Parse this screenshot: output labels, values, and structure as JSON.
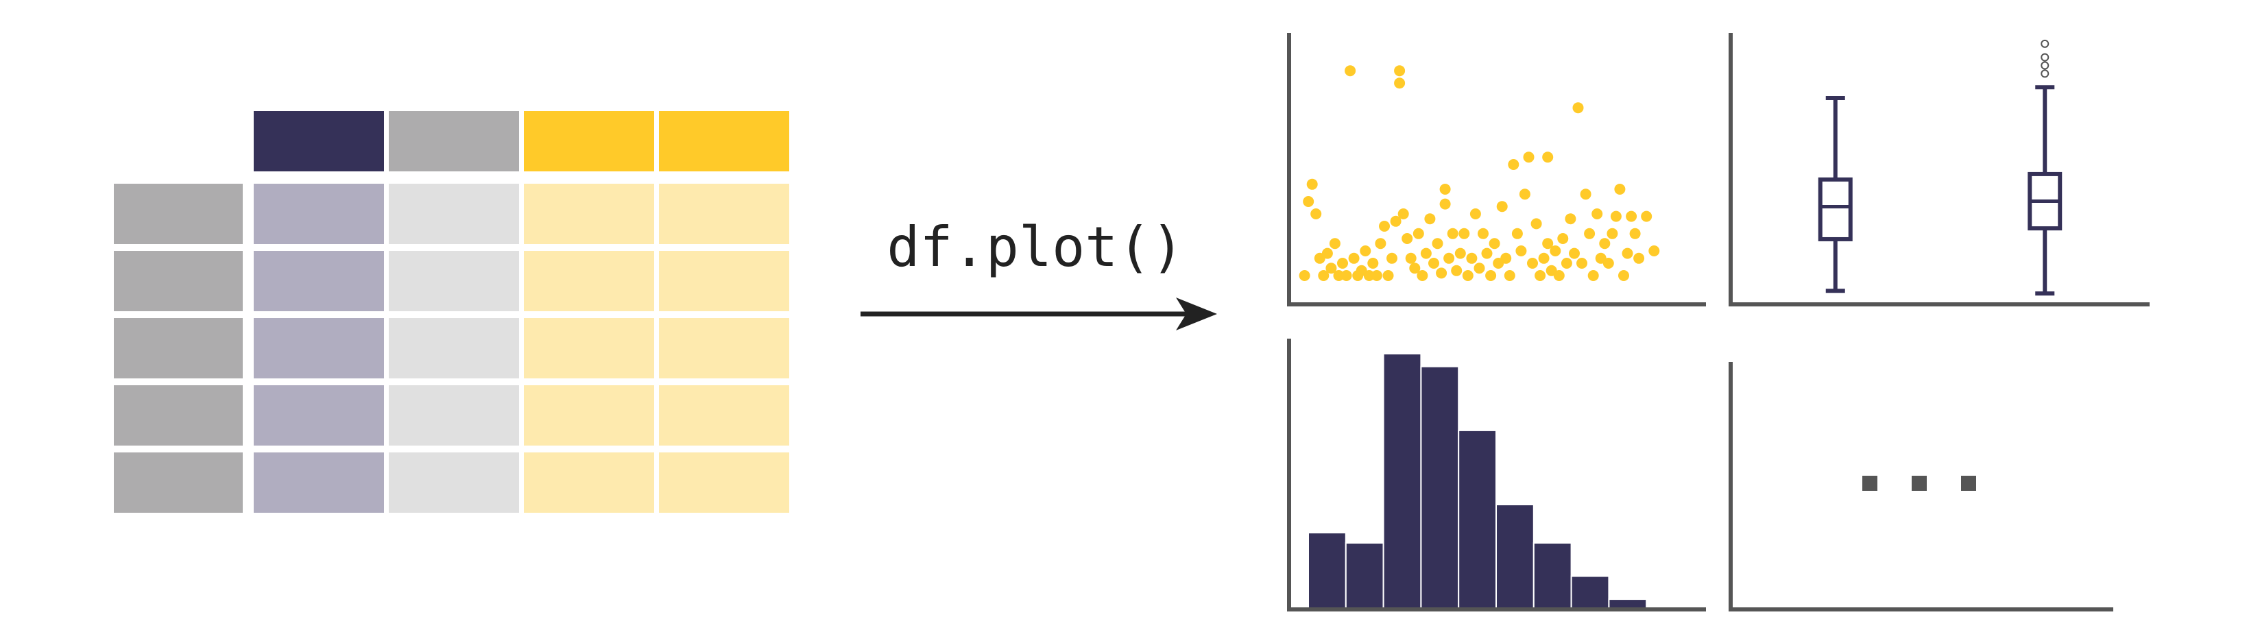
{
  "code_label": "df.plot()",
  "colors": {
    "navy": "#353158",
    "navy_light": "#b0adc0",
    "gray": "#adacad",
    "gray_light": "#e0e0e0",
    "yellow": "#ffca29",
    "yellow_light": "#feeaae",
    "axis": "#555555",
    "arrow": "#222222",
    "outlier": "#555555"
  },
  "dataframe": {
    "column_colors": [
      "navy",
      "gray",
      "yellow",
      "yellow"
    ],
    "row_count": 5
  },
  "chart_data": [
    {
      "type": "scatter",
      "points": [
        [
          0.03,
          0.05
        ],
        [
          0.04,
          0.35
        ],
        [
          0.05,
          0.42
        ],
        [
          0.06,
          0.3
        ],
        [
          0.07,
          0.12
        ],
        [
          0.08,
          0.05
        ],
        [
          0.09,
          0.14
        ],
        [
          0.1,
          0.08
        ],
        [
          0.11,
          0.18
        ],
        [
          0.12,
          0.05
        ],
        [
          0.13,
          0.1
        ],
        [
          0.14,
          0.05
        ],
        [
          0.15,
          0.88
        ],
        [
          0.16,
          0.12
        ],
        [
          0.17,
          0.05
        ],
        [
          0.18,
          0.07
        ],
        [
          0.19,
          0.15
        ],
        [
          0.2,
          0.05
        ],
        [
          0.21,
          0.1
        ],
        [
          0.22,
          0.05
        ],
        [
          0.23,
          0.18
        ],
        [
          0.24,
          0.25
        ],
        [
          0.25,
          0.05
        ],
        [
          0.26,
          0.12
        ],
        [
          0.27,
          0.27
        ],
        [
          0.28,
          0.88
        ],
        [
          0.28,
          0.83
        ],
        [
          0.29,
          0.3
        ],
        [
          0.3,
          0.2
        ],
        [
          0.31,
          0.12
        ],
        [
          0.32,
          0.08
        ],
        [
          0.33,
          0.22
        ],
        [
          0.34,
          0.05
        ],
        [
          0.35,
          0.14
        ],
        [
          0.36,
          0.28
        ],
        [
          0.37,
          0.1
        ],
        [
          0.38,
          0.18
        ],
        [
          0.39,
          0.06
        ],
        [
          0.4,
          0.4
        ],
        [
          0.4,
          0.34
        ],
        [
          0.41,
          0.12
        ],
        [
          0.42,
          0.22
        ],
        [
          0.43,
          0.07
        ],
        [
          0.44,
          0.14
        ],
        [
          0.45,
          0.22
        ],
        [
          0.46,
          0.05
        ],
        [
          0.47,
          0.12
        ],
        [
          0.48,
          0.3
        ],
        [
          0.49,
          0.08
        ],
        [
          0.5,
          0.22
        ],
        [
          0.51,
          0.14
        ],
        [
          0.52,
          0.05
        ],
        [
          0.53,
          0.18
        ],
        [
          0.54,
          0.1
        ],
        [
          0.55,
          0.33
        ],
        [
          0.56,
          0.12
        ],
        [
          0.57,
          0.05
        ],
        [
          0.58,
          0.5
        ],
        [
          0.59,
          0.22
        ],
        [
          0.6,
          0.15
        ],
        [
          0.61,
          0.38
        ],
        [
          0.62,
          0.53
        ],
        [
          0.63,
          0.1
        ],
        [
          0.64,
          0.26
        ],
        [
          0.65,
          0.05
        ],
        [
          0.66,
          0.12
        ],
        [
          0.67,
          0.18
        ],
        [
          0.67,
          0.53
        ],
        [
          0.68,
          0.07
        ],
        [
          0.69,
          0.15
        ],
        [
          0.7,
          0.05
        ],
        [
          0.71,
          0.2
        ],
        [
          0.72,
          0.1
        ],
        [
          0.73,
          0.28
        ],
        [
          0.74,
          0.14
        ],
        [
          0.75,
          0.73
        ],
        [
          0.76,
          0.1
        ],
        [
          0.77,
          0.38
        ],
        [
          0.78,
          0.22
        ],
        [
          0.79,
          0.05
        ],
        [
          0.8,
          0.3
        ],
        [
          0.81,
          0.12
        ],
        [
          0.82,
          0.18
        ],
        [
          0.83,
          0.1
        ],
        [
          0.84,
          0.22
        ],
        [
          0.85,
          0.29
        ],
        [
          0.86,
          0.4
        ],
        [
          0.87,
          0.05
        ],
        [
          0.88,
          0.14
        ],
        [
          0.89,
          0.29
        ],
        [
          0.9,
          0.22
        ],
        [
          0.91,
          0.12
        ],
        [
          0.93,
          0.29
        ],
        [
          0.95,
          0.15
        ]
      ],
      "xlim": [
        0,
        1
      ],
      "ylim": [
        0,
        1
      ],
      "color": "yellow"
    },
    {
      "type": "box",
      "boxes": [
        {
          "x": 0.25,
          "whisker_low": 0.05,
          "q1": 0.24,
          "median": 0.36,
          "q3": 0.46,
          "whisker_high": 0.76,
          "outliers": []
        },
        {
          "x": 0.75,
          "whisker_low": 0.04,
          "q1": 0.28,
          "median": 0.38,
          "q3": 0.48,
          "whisker_high": 0.8,
          "outliers": [
            0.85,
            0.88,
            0.91,
            0.96
          ]
        }
      ],
      "ylim": [
        0,
        1
      ],
      "color": "navy"
    },
    {
      "type": "histogram",
      "values": [
        0.3,
        0.26,
        1.0,
        0.95,
        0.7,
        0.41,
        0.26,
        0.13,
        0.04
      ],
      "ylim": [
        0,
        1
      ],
      "color": "navy"
    },
    {
      "type": "ellipsis"
    }
  ]
}
